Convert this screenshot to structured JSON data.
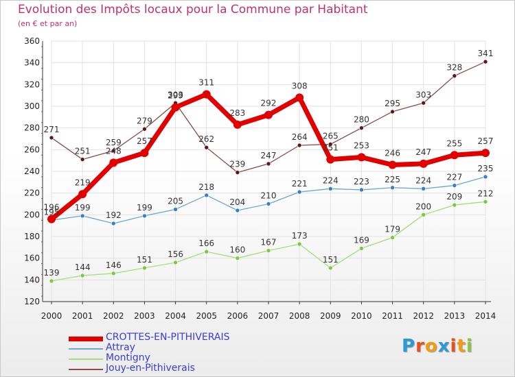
{
  "header": {
    "title": "Evolution des Impôts locaux pour la Commune par Habitant",
    "subtitle": "(en € et par an)"
  },
  "brand": {
    "letters": [
      "P",
      "r",
      "o",
      "x",
      "i",
      "t",
      "i"
    ],
    "colors": [
      "#2a9bd8",
      "#e8501a",
      "#f39c12",
      "#2a9bd8",
      "#e8501a",
      "#f39c12",
      "#8cc63f"
    ]
  },
  "chart_data": {
    "type": "line",
    "categories": [
      "2000",
      "2001",
      "2002",
      "2003",
      "2004",
      "2005",
      "2006",
      "2007",
      "2008",
      "2009",
      "2010",
      "2011",
      "2012",
      "2013",
      "2014"
    ],
    "ylim": [
      120,
      360
    ],
    "yticks": [
      "120",
      "140",
      "160",
      "180",
      "200",
      "220",
      "240",
      "260",
      "280",
      "300",
      "320",
      "340",
      "360"
    ],
    "grid": true,
    "legend_position": "bottom-left",
    "series": [
      {
        "name": "CROTTES-EN-PITHIVERAIS",
        "color": "#e00000",
        "marker": "#e00000",
        "emphasis": true,
        "values": [
          196,
          219,
          248,
          257,
          299,
          311,
          283,
          292,
          308,
          251,
          253,
          246,
          247,
          255,
          257
        ],
        "labels": [
          "196",
          "219",
          "248",
          "257",
          "299",
          "311",
          "283",
          "292",
          "308",
          "251",
          "253",
          "246",
          "247",
          "255",
          "257"
        ]
      },
      {
        "name": "Attray",
        "color": "#6aa6d6",
        "marker": "#3a7fc0",
        "emphasis": false,
        "values": [
          195,
          199,
          192,
          199,
          205,
          218,
          204,
          210,
          221,
          224,
          223,
          225,
          224,
          227,
          235
        ],
        "labels": [
          "195",
          "199",
          "192",
          "199",
          "205",
          "218",
          "204",
          "210",
          "221",
          "224",
          "223",
          "225",
          "224",
          "227",
          "235"
        ]
      },
      {
        "name": "Montigny",
        "color": "#a6dc78",
        "marker": "#7ac943",
        "emphasis": false,
        "values": [
          139,
          144,
          146,
          151,
          156,
          166,
          160,
          167,
          173,
          151,
          169,
          179,
          200,
          209,
          212
        ],
        "labels": [
          "139",
          "144",
          "146",
          "151",
          "156",
          "166",
          "160",
          "167",
          "173",
          "151",
          "169",
          "179",
          "200",
          "209",
          "212"
        ]
      },
      {
        "name": "Jouy-en-Pithiverais",
        "color": "#8c4a4a",
        "marker": "#5a1a1a",
        "emphasis": false,
        "values": [
          271,
          251,
          259,
          279,
          303,
          262,
          239,
          247,
          264,
          265,
          280,
          295,
          303,
          328,
          341
        ],
        "labels": [
          "271",
          "251",
          "259",
          "279",
          "303",
          "262",
          "239",
          "247",
          "264",
          "265",
          "280",
          "295",
          "303",
          "328",
          "341"
        ]
      }
    ]
  }
}
